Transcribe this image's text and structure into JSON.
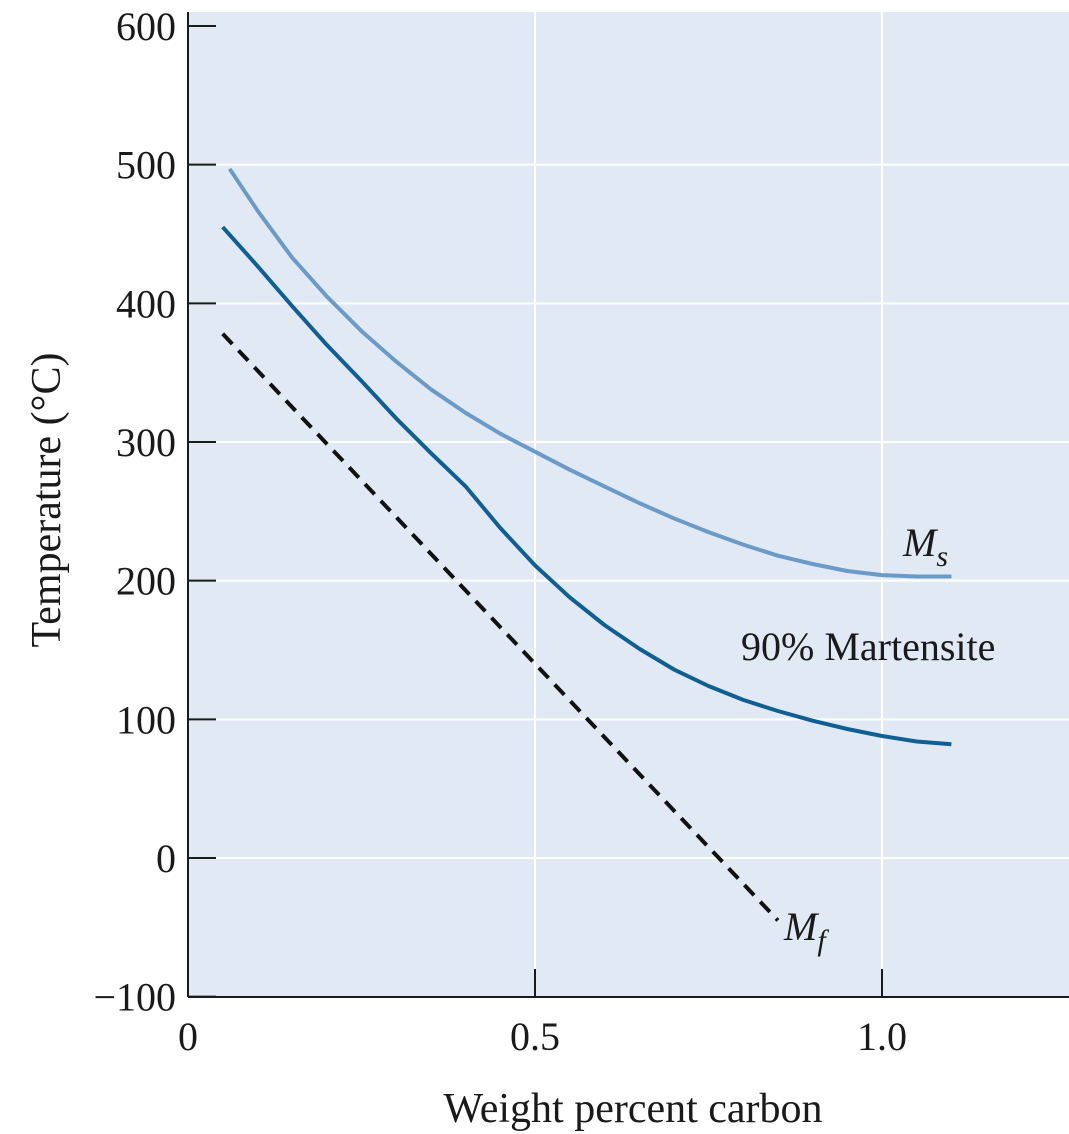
{
  "chart_data": {
    "type": "line",
    "xlabel": "Weight percent carbon",
    "ylabel": "Temperature (°C)",
    "xlim": [
      0,
      1.28
    ],
    "ylim": [
      -100,
      615
    ],
    "xticks": [
      0,
      0.5,
      1.0
    ],
    "xtick_labels": [
      "0",
      "0.5",
      "1.0"
    ],
    "yticks": [
      -100,
      0,
      100,
      200,
      300,
      400,
      500,
      600
    ],
    "ytick_labels": [
      "−100",
      "0",
      "100",
      "200",
      "300",
      "400",
      "500",
      "600"
    ],
    "grid": true,
    "colors": {
      "background": "#e1eaf4",
      "grid": "#ffffff",
      "axis": "#1a1a1a",
      "ms": "#6a9ac8",
      "martensite90": "#0f5f95",
      "mf": "#111111"
    },
    "series": [
      {
        "name": "M_s",
        "label_main": "M",
        "label_sub": "s",
        "x": [
          0.06,
          0.1,
          0.15,
          0.2,
          0.25,
          0.3,
          0.35,
          0.4,
          0.45,
          0.5,
          0.55,
          0.6,
          0.65,
          0.7,
          0.75,
          0.8,
          0.85,
          0.9,
          0.95,
          1.0,
          1.05,
          1.1
        ],
        "y": [
          497,
          467,
          433,
          405,
          380,
          358,
          338,
          321,
          306,
          293,
          280,
          268,
          256,
          245,
          235,
          226,
          218,
          212,
          207,
          204,
          203,
          203
        ]
      },
      {
        "name": "90% Martensite",
        "x": [
          0.05,
          0.1,
          0.15,
          0.2,
          0.25,
          0.3,
          0.35,
          0.4,
          0.45,
          0.5,
          0.55,
          0.6,
          0.65,
          0.7,
          0.75,
          0.8,
          0.85,
          0.9,
          0.95,
          1.0,
          1.05,
          1.1
        ],
        "y": [
          455,
          427,
          398,
          370,
          344,
          317,
          292,
          268,
          238,
          211,
          188,
          168,
          151,
          136,
          124,
          114,
          106,
          99,
          93,
          88,
          84,
          82
        ]
      },
      {
        "name": "M_f",
        "label_main": "M",
        "label_sub": "f",
        "style": "dashed",
        "x": [
          0.05,
          0.85
        ],
        "y": [
          378,
          -45
        ]
      }
    ]
  }
}
